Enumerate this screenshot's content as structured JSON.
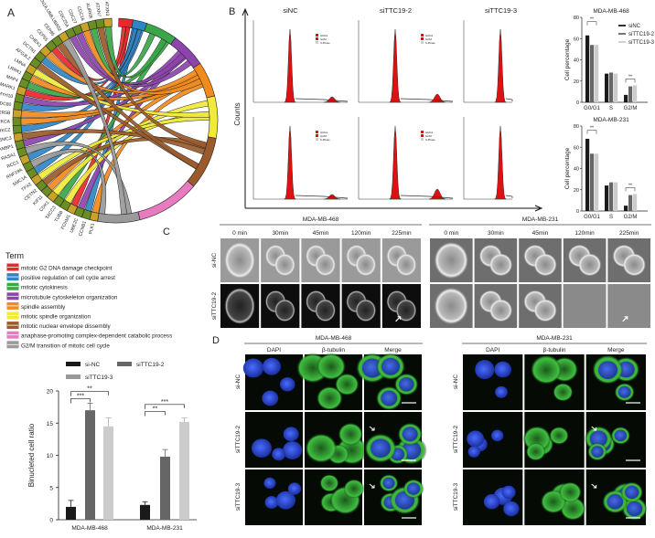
{
  "panels": {
    "A": "A",
    "B": "B",
    "C": "C",
    "D": "D"
  },
  "colors": {
    "terms": [
      "#e8282b",
      "#2f86c6",
      "#3aa648",
      "#8e44ad",
      "#f28a1d",
      "#f1ea3a",
      "#9a5a2a",
      "#e87bbf",
      "#9a9a9a"
    ],
    "gene_ring": "#6b8e23",
    "flow_fill": "#dd1111",
    "sinc": "#1a1a1a",
    "sittc19_2": "#666666",
    "sittc19_3": "#cccccc"
  },
  "chord": {
    "genes": [
      "PLK1",
      "CCNB1",
      "UBE2C",
      "FOXM1",
      "TUBB",
      "TACC3",
      "CDK1",
      "KIF11",
      "CETN2",
      "TPX2",
      "SMC1A",
      "RNF19A",
      "RCC1",
      "RASA1",
      "RANBP1",
      "PSMC3",
      "PRKCZ",
      "PRKCA",
      "PPP2R5B",
      "NDC80",
      "MYH10",
      "MARK1",
      "MAP4",
      "LRRK1",
      "LMNA",
      "AFG3L2",
      "DCTN1",
      "CHEK1",
      "CEP55",
      "CEP85",
      "CDKN1A,UBB,UBA52",
      "CDC25A",
      "CDC27",
      "CDC16",
      "AURKB",
      "ATXN7",
      "ATXN3"
    ]
  },
  "legend": {
    "title": "Term",
    "terms": [
      "mitotic G2 DNA damage checkpoint",
      "positive regulation of cell cycle arrest",
      "mitotic cytokinesis",
      "microtubule cytoskeleton organization",
      "spindle assembly",
      "mitotic spindle organization",
      "mitotic nuclear envelope dissembly",
      "anaphase-promoting complex-dependent catabolic process",
      "G2/M transition of mitotic cell cycle"
    ]
  },
  "flow": {
    "ylabel": "Counts",
    "columns": [
      "siNC",
      "siTTC19-2",
      "siTTC19-3"
    ],
    "legend_items": [
      "G0/G1",
      "G2/M",
      "S-Phase"
    ]
  },
  "panelC": {
    "groups": [
      "MDA-MB-468",
      "MDA-MB-231"
    ],
    "times": [
      "0 min",
      "30min",
      "45min",
      "120min",
      "225min"
    ],
    "rows": [
      "si-NC",
      "siTTC19-2"
    ]
  },
  "panelD": {
    "groups": [
      "MDA-MB-468",
      "MDA-MB-231"
    ],
    "channels": [
      "DAPI",
      "β-tubulin",
      "Merge"
    ],
    "rows": [
      "si-NC",
      "siTTC19-2",
      "siTTC19-3"
    ]
  },
  "chart_data": [
    {
      "type": "bar",
      "title": "",
      "ylabel": "Binucleted cell ratio",
      "categories": [
        "MDA-MB-468",
        "MDA-MB-231"
      ],
      "ylim": [
        0,
        20
      ],
      "yticks": [
        "0",
        "5",
        "10",
        "15",
        "20"
      ],
      "series": [
        {
          "name": "si-NC",
          "values": [
            2.0,
            2.3
          ],
          "errors": [
            1.0,
            0.5
          ]
        },
        {
          "name": "siTTC19-2",
          "values": [
            17.0,
            9.8
          ],
          "errors": [
            1.1,
            1.1
          ]
        },
        {
          "name": "siTTC19-3",
          "values": [
            14.5,
            15.2
          ],
          "errors": [
            1.3,
            0.6
          ]
        }
      ],
      "significance": [
        [
          "***",
          "**"
        ],
        [
          "**",
          "***"
        ]
      ],
      "legend_placement": "top"
    },
    {
      "type": "bar",
      "title": "MDA-MB-468",
      "ylabel": "Cell percentage",
      "categories": [
        "G0/G1",
        "S",
        "G2/M"
      ],
      "ylim": [
        0,
        80
      ],
      "yticks": [
        "0",
        "20",
        "40",
        "60",
        "80"
      ],
      "series": [
        {
          "name": "siNC",
          "values": [
            63,
            27,
            7
          ]
        },
        {
          "name": "siTTC19-2",
          "values": [
            54,
            28,
            15
          ]
        },
        {
          "name": "siTTC19-3",
          "values": [
            54,
            27,
            16
          ]
        }
      ],
      "significance": [
        "**",
        "",
        "**"
      ],
      "legend_placement": "top-right"
    },
    {
      "type": "bar",
      "title": "MDA-MB-231",
      "ylabel": "Cell percentage",
      "categories": [
        "G0/G1",
        "S",
        "G2/M"
      ],
      "ylim": [
        0,
        80
      ],
      "yticks": [
        "0",
        "20",
        "40",
        "60",
        "80"
      ],
      "series": [
        {
          "values": [
            68,
            24,
            5
          ]
        },
        {
          "values": [
            54,
            27,
            15
          ]
        },
        {
          "values": [
            54,
            27,
            16
          ]
        }
      ],
      "significance": [
        "**",
        "",
        "**"
      ]
    }
  ]
}
